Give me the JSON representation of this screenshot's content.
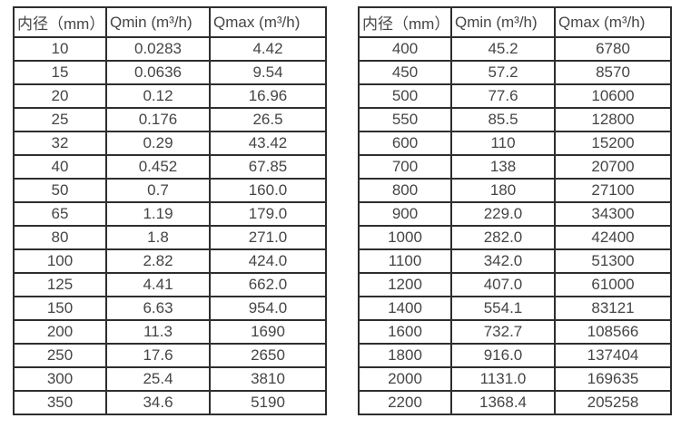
{
  "page": {
    "background": "#ffffff",
    "text_color": "#454545",
    "border_color": "#2e2e2e"
  },
  "tables": [
    {
      "name": "flow-table-small-diameters",
      "headers": [
        "内径（mm）",
        "Qmin (m³/h)",
        "Qmax (m³/h)"
      ],
      "rows": [
        [
          "10",
          "0.0283",
          "4.42"
        ],
        [
          "15",
          "0.0636",
          "9.54"
        ],
        [
          "20",
          "0.12",
          "16.96"
        ],
        [
          "25",
          "0.176",
          "26.5"
        ],
        [
          "32",
          "0.29",
          "43.42"
        ],
        [
          "40",
          "0.452",
          "67.85"
        ],
        [
          "50",
          "0.7",
          "160.0"
        ],
        [
          "65",
          "1.19",
          "179.0"
        ],
        [
          "80",
          "1.8",
          "271.0"
        ],
        [
          "100",
          "2.82",
          "424.0"
        ],
        [
          "125",
          "4.41",
          "662.0"
        ],
        [
          "150",
          "6.63",
          "954.0"
        ],
        [
          "200",
          "11.3",
          "1690"
        ],
        [
          "250",
          "17.6",
          "2650"
        ],
        [
          "300",
          "25.4",
          "3810"
        ],
        [
          "350",
          "34.6",
          "5190"
        ]
      ]
    },
    {
      "name": "flow-table-large-diameters",
      "headers": [
        "内径（mm）",
        "Qmin (m³/h)",
        "Qmax (m³/h)"
      ],
      "rows": [
        [
          "400",
          "45.2",
          "6780"
        ],
        [
          "450",
          "57.2",
          "8570"
        ],
        [
          "500",
          "77.6",
          "10600"
        ],
        [
          "550",
          "85.5",
          "12800"
        ],
        [
          "600",
          "110",
          "15200"
        ],
        [
          "700",
          "138",
          "20700"
        ],
        [
          "800",
          "180",
          "27100"
        ],
        [
          "900",
          "229.0",
          "34300"
        ],
        [
          "1000",
          "282.0",
          "42400"
        ],
        [
          "1100",
          "342.0",
          "51300"
        ],
        [
          "1200",
          "407.0",
          "61000"
        ],
        [
          "1400",
          "554.1",
          "83121"
        ],
        [
          "1600",
          "732.7",
          "108566"
        ],
        [
          "1800",
          "916.0",
          "137404"
        ],
        [
          "2000",
          "1131.0",
          "169635"
        ],
        [
          "2200",
          "1368.4",
          "205258"
        ]
      ]
    }
  ]
}
